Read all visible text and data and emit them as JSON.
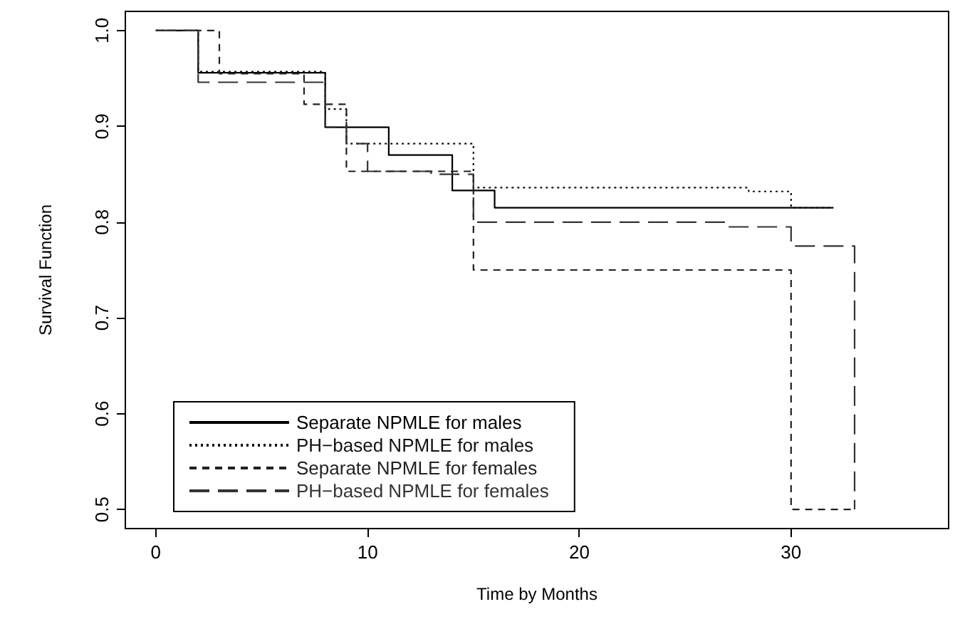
{
  "chart_data": {
    "type": "step",
    "xlabel": "Time by Months",
    "ylabel": "Survival Function",
    "xlim": [
      -1.44,
      37.44
    ],
    "xticks": [
      0,
      10,
      20,
      30
    ],
    "ylim": [
      0.48,
      1.02
    ],
    "yticks": [
      0.5,
      0.6,
      0.7,
      0.8,
      0.9,
      {
        "value": 1,
        "label": "1.0"
      }
    ],
    "grid": false,
    "legend": "bottom left",
    "marker": "none",
    "series": [
      {
        "name": "Separate NPMLE for males",
        "color": "#000000",
        "line_style": "solid",
        "x": [
          0,
          2,
          8,
          11,
          14,
          16,
          32
        ],
        "values": [
          1.0,
          0.956,
          0.899,
          0.87,
          0.833,
          0.815,
          0.815
        ]
      },
      {
        "name": "PH−based NPMLE for males",
        "color": "#111111",
        "line_style": "dotted",
        "x": [
          0,
          2,
          8,
          9,
          15,
          28,
          30,
          32
        ],
        "values": [
          1.0,
          0.957,
          0.918,
          0.882,
          0.836,
          0.832,
          0.815,
          0.815
        ]
      },
      {
        "name": "Separate NPMLE for females",
        "color": "#222222",
        "line_style": "dashed",
        "x": [
          0,
          3,
          7,
          9,
          15,
          30,
          33
        ],
        "values": [
          1.0,
          0.955,
          0.923,
          0.853,
          0.75,
          0.5,
          0.5
        ]
      },
      {
        "name": "PH−based NPMLE for females",
        "color": "#333333",
        "line_style": "dashed",
        "x": [
          0,
          2,
          8,
          9,
          10,
          13,
          15,
          27,
          30,
          33
        ],
        "values": [
          1.0,
          0.946,
          0.899,
          0.882,
          0.853,
          0.85,
          0.8,
          0.795,
          0.775,
          0.5
        ]
      }
    ]
  }
}
